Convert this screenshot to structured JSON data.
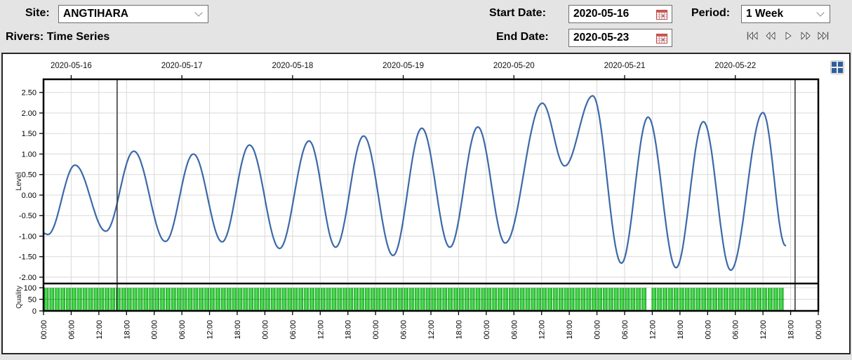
{
  "header": {
    "site_label": "Site:",
    "site_value": "ANGTIHARA",
    "title": "Rivers: Time Series",
    "start_date_label": "Start Date:",
    "start_date_value": "2020-05-16",
    "end_date_label": "End Date:",
    "end_date_value": "2020-05-23",
    "period_label": "Period:",
    "period_value": "1 Week",
    "nav_icons": [
      "skip-first",
      "rewind",
      "play",
      "fast-forward",
      "skip-last"
    ]
  },
  "colors": {
    "line_blue": "#3c69a8",
    "quality_green": "#2cc435",
    "quality_green_light": "#5be25e",
    "quality_green_dark": "#1aa526",
    "grid": "#d9d9d9",
    "cursor": "#3b3b3b",
    "calendar_red": "#c0392b",
    "icon_blue": "#2d5f9f"
  },
  "chart_data": {
    "type": "line",
    "top_axis_dates": [
      "2020-05-16",
      "2020-05-17",
      "2020-05-18",
      "2020-05-19",
      "2020-05-20",
      "2020-05-21",
      "2020-05-22"
    ],
    "bottom_axis": {
      "labels_per_day": [
        "00:00",
        "06:00",
        "12:00",
        "18:00"
      ],
      "final_label": "00:00",
      "days": 7,
      "tick_interval_hours": 6
    },
    "level_axis": {
      "title": "Level",
      "tick_values": [
        2.5,
        2.0,
        1.5,
        1.0,
        0.5,
        0.0,
        -0.5,
        -1.0,
        -1.5,
        -2.0
      ],
      "range": [
        -2.15,
        2.82
      ],
      "decimals": 2
    },
    "quality_axis": {
      "title": "Quality",
      "tick_values": [
        100,
        50,
        0
      ],
      "range": [
        0,
        118
      ]
    },
    "series": [
      {
        "name": "Level",
        "color": "#3c69a8",
        "extrema_day_value": [
          [
            0.0,
            -0.93
          ],
          [
            0.04,
            -0.96
          ],
          [
            0.285,
            0.73
          ],
          [
            0.563,
            -0.88
          ],
          [
            0.816,
            1.07
          ],
          [
            1.101,
            -1.13
          ],
          [
            1.354,
            1.0
          ],
          [
            1.614,
            -1.14
          ],
          [
            1.861,
            1.22
          ],
          [
            2.133,
            -1.3
          ],
          [
            2.399,
            1.32
          ],
          [
            2.639,
            -1.27
          ],
          [
            2.892,
            1.44
          ],
          [
            3.158,
            -1.47
          ],
          [
            3.418,
            1.63
          ],
          [
            3.671,
            -1.27
          ],
          [
            3.924,
            1.66
          ],
          [
            4.171,
            -1.17
          ],
          [
            4.506,
            2.24
          ],
          [
            4.709,
            0.71
          ],
          [
            4.962,
            2.42
          ],
          [
            5.221,
            -1.66
          ],
          [
            5.462,
            1.9
          ],
          [
            5.715,
            -1.77
          ],
          [
            5.962,
            1.79
          ],
          [
            6.209,
            -1.83
          ],
          [
            6.5,
            2.01
          ],
          [
            6.703,
            -1.23
          ]
        ]
      }
    ],
    "quality_bars": {
      "value": 100,
      "bar_width_days": 0.05,
      "segments_days": [
        [
          0.0,
          5.44
        ],
        [
          5.49,
          6.7
        ]
      ]
    },
    "cursor_lines_days": [
      0.665,
      6.79
    ],
    "grid_steps": {
      "x_days": 0.25,
      "y_level": 0.5,
      "y_quality": 50
    }
  }
}
